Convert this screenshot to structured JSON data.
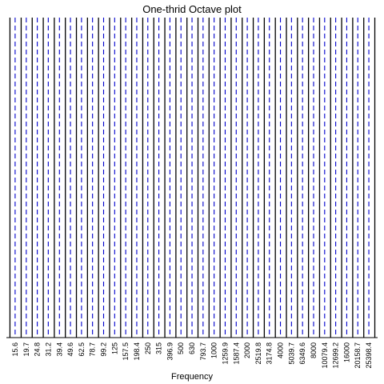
{
  "chart_data": {
    "type": "line",
    "title": "One-thrid Octave plot",
    "xlabel": "Frequency",
    "ylabel": "",
    "scale": "log",
    "grid": false,
    "center_frequencies": [
      "15.6",
      "19.7",
      "24.8",
      "31.2",
      "39.4",
      "49.6",
      "62.5",
      "78.7",
      "99.2",
      "125",
      "157.5",
      "198.4",
      "250",
      "315",
      "396.9",
      "500",
      "630",
      "793.7",
      "1000",
      "1259.9",
      "1587.4",
      "2000",
      "2519.8",
      "3174.8",
      "4000",
      "5039.7",
      "6349.6",
      "8000",
      "10079.4",
      "12699.2",
      "16000",
      "20158.7",
      "25398.4"
    ],
    "band_edges": [
      14,
      17.7,
      22.3,
      28.1,
      35.4,
      44.6,
      56.2,
      70.8,
      89.2,
      112.4,
      141.6,
      178.5,
      224.9,
      283.3,
      356.9,
      449.7,
      566.6,
      713.8,
      899.3,
      1133,
      1427.5,
      1798.5,
      2265.9,
      2854.9,
      3596.9,
      4531.8,
      5709.6,
      7193.8,
      9063.6,
      11419.3,
      14387.3,
      18126.7,
      22838.1,
      28774.2
    ],
    "colors": {
      "center_line": "#0000cc",
      "edge_line": "#000000",
      "axis": "#000000"
    }
  }
}
